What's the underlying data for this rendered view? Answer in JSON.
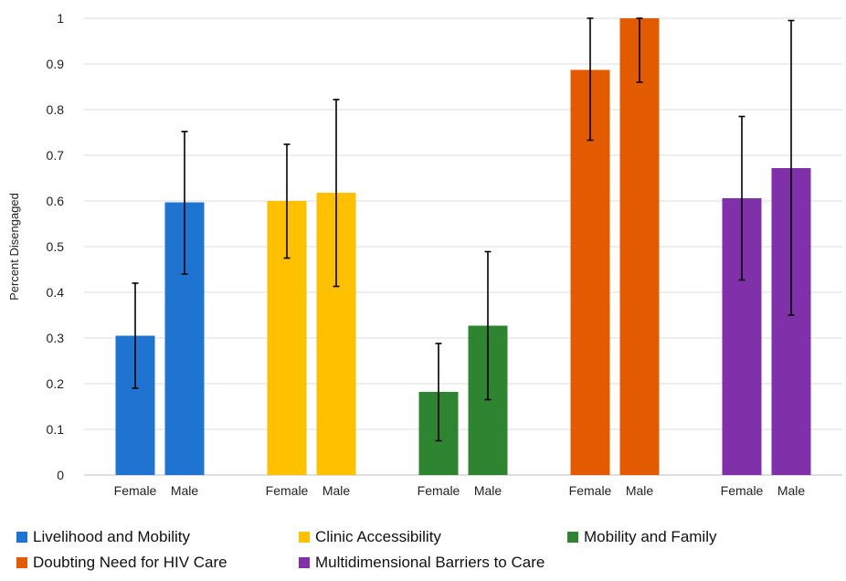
{
  "chart_data": {
    "type": "bar",
    "title": "",
    "xlabel": "",
    "ylabel": "Percent Disengaged",
    "ylim": [
      0,
      1
    ],
    "yticks": [
      "0",
      "0.1",
      "0.2",
      "0.3",
      "0.4",
      "0.5",
      "0.6",
      "0.7",
      "0.8",
      "0.9",
      "1"
    ],
    "grid": true,
    "legend_position": "bottom",
    "categories": [
      "Female",
      "Male"
    ],
    "series": [
      {
        "name": "Livelihood and Mobility",
        "color": "#1f74d1",
        "values": [
          0.305,
          0.597
        ],
        "error_low": [
          0.19,
          0.44
        ],
        "error_high": [
          0.42,
          0.752
        ]
      },
      {
        "name": "Clinic Accessibility",
        "color": "#ffc000",
        "values": [
          0.6,
          0.618
        ],
        "error_low": [
          0.475,
          0.413
        ],
        "error_high": [
          0.724,
          0.822
        ]
      },
      {
        "name": "Mobility and Family",
        "color": "#2e8431",
        "values": [
          0.182,
          0.327
        ],
        "error_low": [
          0.075,
          0.165
        ],
        "error_high": [
          0.288,
          0.489
        ]
      },
      {
        "name": "Doubting Need for HIV Care",
        "color": "#e35b00",
        "values": [
          0.887,
          1.0
        ],
        "error_low": [
          0.733,
          0.86
        ],
        "error_high": [
          1.0,
          1.0
        ]
      },
      {
        "name": "Multidimensional Barriers to Care",
        "color": "#8030a8",
        "values": [
          0.606,
          0.672
        ],
        "error_low": [
          0.427,
          0.35
        ],
        "error_high": [
          0.785,
          0.995
        ]
      }
    ]
  }
}
